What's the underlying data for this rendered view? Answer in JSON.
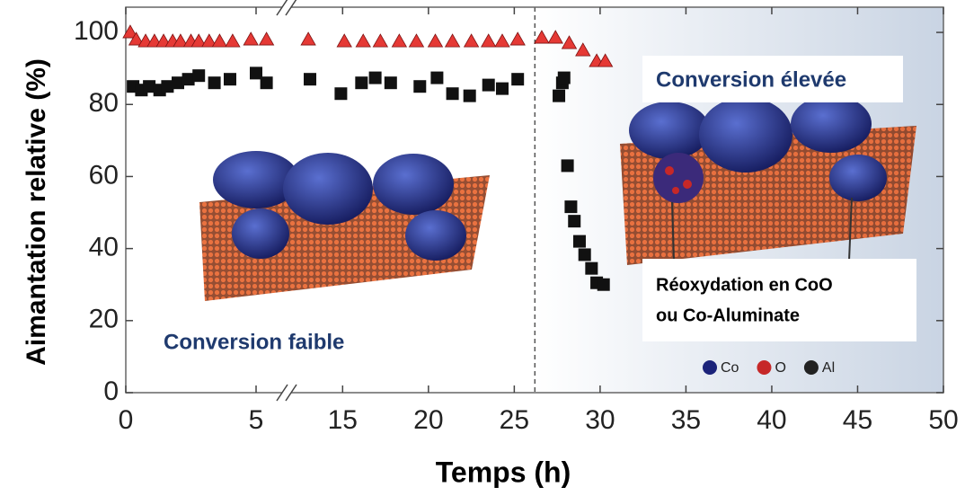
{
  "chart_data": {
    "type": "scatter",
    "xlabel": "Temps (h)",
    "ylabel": "Aimantation relative (%)",
    "xlim": [
      0,
      50
    ],
    "x_break": [
      6,
      12
    ],
    "ylim": [
      0,
      107
    ],
    "xticks": [
      0,
      5,
      15,
      20,
      25,
      30,
      35,
      40,
      45,
      50
    ],
    "yticks": [
      0,
      20,
      40,
      60,
      80,
      100
    ],
    "divider_x": 26.2,
    "series": [
      {
        "color": "#e53935",
        "marker": "triangle",
        "x": [
          0.17,
          0.4,
          0.76,
          1.1,
          1.45,
          1.8,
          2.1,
          2.5,
          2.8,
          3.2,
          3.6,
          4.1,
          4.8,
          5.4,
          13,
          15.1,
          16.2,
          17.2,
          18.3,
          19.3,
          20.4,
          21.4,
          22.5,
          23.5,
          24.3,
          25.2,
          26.6,
          27.4,
          28.2,
          29,
          29.8,
          30.3
        ],
        "values": [
          100,
          98,
          97.5,
          97.5,
          97.5,
          97.5,
          97.5,
          97.5,
          97.5,
          97.5,
          97.5,
          97.5,
          98,
          98,
          98,
          97.5,
          97.5,
          97.5,
          97.5,
          97.5,
          97.5,
          97.5,
          97.5,
          97.5,
          97.5,
          98,
          98.5,
          98.5,
          97,
          95,
          92,
          92
        ]
      },
      {
        "color": "#111111",
        "marker": "square",
        "x": [
          0.28,
          0.6,
          0.9,
          1.3,
          1.6,
          2,
          2.4,
          2.8,
          3.4,
          4,
          5,
          5.4,
          13.1,
          14.9,
          16.1,
          16.9,
          17.8,
          19.5,
          20.5,
          21.4,
          22.4,
          23.5,
          24.3,
          25.2,
          27.6,
          27.8,
          27.9,
          28.1,
          28.3,
          28.5,
          28.8,
          29.1,
          29.5,
          29.8,
          30.2
        ],
        "values": [
          85,
          84,
          85,
          84,
          85,
          86,
          87,
          88,
          86,
          87,
          88.7,
          86,
          87,
          83,
          86,
          87.4,
          86,
          85,
          87.4,
          83,
          82.4,
          85.4,
          84.4,
          87,
          82.4,
          86,
          87.4,
          63,
          51.6,
          47.6,
          42,
          38.3,
          34.5,
          30.5,
          30
        ]
      }
    ],
    "annotations": [
      {
        "text": "Conversion faible",
        "color": "#1f3a6e"
      },
      {
        "text": "Conversion élevée",
        "color": "#1f3a6e"
      },
      {
        "lines": [
          "Réoxydation en CoO",
          "ou Co-Aluminate"
        ],
        "color": "#000000"
      }
    ],
    "atom_legend": [
      {
        "name": "Co",
        "color": "#1b237a"
      },
      {
        "name": "O",
        "color": "#c62828"
      },
      {
        "name": "Al",
        "color": "#222222"
      }
    ]
  }
}
